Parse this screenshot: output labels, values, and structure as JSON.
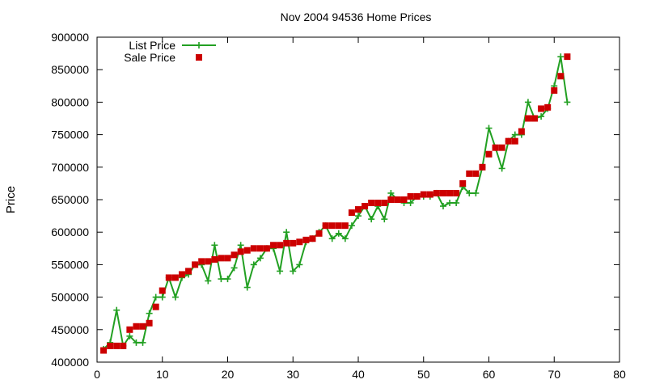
{
  "chart_data": {
    "type": "line",
    "title": "Nov 2004 94536 Home Prices",
    "xlabel": "",
    "ylabel": "Price",
    "xlim": [
      0,
      80
    ],
    "ylim": [
      400000,
      900000
    ],
    "xticks": [
      0,
      10,
      20,
      30,
      40,
      50,
      60,
      70,
      80
    ],
    "yticks": [
      400000,
      450000,
      500000,
      550000,
      600000,
      650000,
      700000,
      750000,
      800000,
      850000,
      900000
    ],
    "grid": false,
    "legend_position": "top-left",
    "series": [
      {
        "name": "List Price",
        "style": "lines+crosses",
        "color": "#22a022",
        "x": [
          1,
          2,
          3,
          4,
          5,
          6,
          7,
          8,
          9,
          10,
          11,
          12,
          13,
          14,
          15,
          16,
          17,
          18,
          19,
          20,
          21,
          22,
          23,
          24,
          25,
          26,
          27,
          28,
          29,
          30,
          31,
          32,
          33,
          34,
          35,
          36,
          37,
          38,
          39,
          40,
          41,
          42,
          43,
          44,
          45,
          46,
          47,
          48,
          49,
          50,
          51,
          52,
          53,
          54,
          55,
          56,
          57,
          58,
          59,
          60,
          61,
          62,
          63,
          64,
          65,
          66,
          67,
          68,
          69,
          70,
          71,
          72
        ],
        "y": [
          420000,
          430000,
          480000,
          425000,
          440000,
          430000,
          430000,
          475000,
          500000,
          500000,
          530000,
          500000,
          530000,
          535000,
          550000,
          550000,
          525000,
          580000,
          528000,
          528000,
          545000,
          580000,
          515000,
          550000,
          560000,
          575000,
          575000,
          540000,
          600000,
          540000,
          550000,
          585000,
          590000,
          600000,
          610000,
          590000,
          598000,
          590000,
          610000,
          625000,
          640000,
          620000,
          640000,
          620000,
          660000,
          650000,
          645000,
          645000,
          655000,
          655000,
          655000,
          660000,
          640000,
          645000,
          645000,
          670000,
          660000,
          660000,
          700000,
          760000,
          730000,
          698000,
          740000,
          750000,
          750000,
          800000,
          775000,
          778000,
          790000,
          825000,
          870000,
          800000
        ]
      },
      {
        "name": "Sale Price",
        "style": "squares",
        "color": "#cc0000",
        "x": [
          1,
          2,
          3,
          4,
          5,
          6,
          7,
          8,
          9,
          10,
          11,
          12,
          13,
          14,
          15,
          16,
          17,
          18,
          19,
          20,
          21,
          22,
          23,
          24,
          25,
          26,
          27,
          28,
          29,
          30,
          31,
          32,
          33,
          34,
          35,
          36,
          37,
          38,
          39,
          40,
          41,
          42,
          43,
          44,
          45,
          46,
          47,
          48,
          49,
          50,
          51,
          52,
          53,
          54,
          55,
          56,
          57,
          58,
          59,
          60,
          61,
          62,
          63,
          64,
          65,
          66,
          67,
          68,
          69,
          70,
          71,
          72
        ],
        "y": [
          418000,
          425000,
          425000,
          425000,
          450000,
          455000,
          455000,
          460000,
          485000,
          510000,
          530000,
          530000,
          535000,
          540000,
          550000,
          555000,
          555000,
          558000,
          560000,
          560000,
          565000,
          570000,
          572000,
          575000,
          575000,
          575000,
          580000,
          580000,
          583000,
          583000,
          585000,
          588000,
          590000,
          598000,
          610000,
          610000,
          610000,
          610000,
          630000,
          635000,
          640000,
          645000,
          645000,
          645000,
          650000,
          650000,
          650000,
          655000,
          655000,
          658000,
          658000,
          660000,
          660000,
          660000,
          660000,
          675000,
          690000,
          690000,
          700000,
          720000,
          730000,
          730000,
          740000,
          740000,
          755000,
          775000,
          775000,
          790000,
          792000,
          818000,
          840000,
          870000
        ]
      }
    ]
  }
}
